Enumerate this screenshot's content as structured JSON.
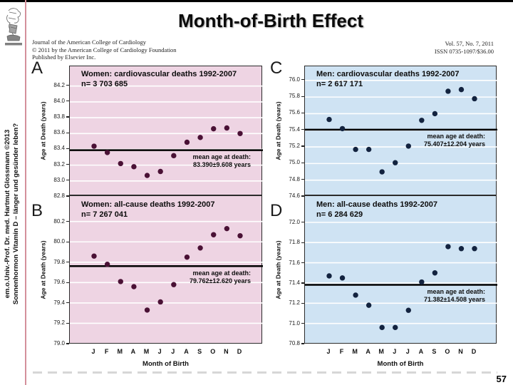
{
  "slide": {
    "title": "Month-of-Birth Effect",
    "page_number": "57",
    "sidebar_line1": "em.o.Univ.-Prof. Dr. med. Hartmut Glossmann ©2013",
    "sidebar_line2": "Sonnenhormon Vitamin D – länger und gesünder leben?"
  },
  "journal_header": {
    "line1": "Journal of the American College of Cardiology",
    "line2": "© 2011 by the American College of Cardiology Foundation",
    "line3": "Published by Elsevier Inc.",
    "vol": "Vol. 57, No. 7, 2011",
    "issn": "ISSN 0735-1097/$36.00"
  },
  "axes": {
    "xlabel": "Month of Birth",
    "ylabel": "Age at Death (years)"
  },
  "chart_data": [
    {
      "id": "A",
      "type": "scatter",
      "letter": "A",
      "title": "Women: cardiovascular deaths 1992-2007",
      "n_label": "n= 3 703 685",
      "mean_label_line1": "mean age at death:",
      "mean_label_line2": "83.390±9.608 years",
      "mean": 83.39,
      "ylim": [
        82.8,
        84.45
      ],
      "yticks": [
        82.8,
        83.0,
        83.2,
        83.4,
        83.6,
        83.8,
        84.0,
        84.2
      ],
      "xlabel": "Month of Birth",
      "ylabel": "Age at Death (years)",
      "x": [
        "J",
        "F",
        "M",
        "A",
        "M",
        "J",
        "J",
        "A",
        "S",
        "O",
        "N",
        "D"
      ],
      "values": [
        83.44,
        83.36,
        83.22,
        83.18,
        83.07,
        83.12,
        83.32,
        83.49,
        83.55,
        83.66,
        83.67,
        83.6
      ],
      "bg": "#eed4e3",
      "point_color": "#4a1135"
    },
    {
      "id": "B",
      "type": "scatter",
      "letter": "B",
      "title": "Women: all-cause deaths 1992-2007",
      "n_label": "n= 7 267 041",
      "mean_label_line1": "mean age at death:",
      "mean_label_line2": "79.762±12.620 years",
      "mean": 79.762,
      "ylim": [
        79.0,
        80.45
      ],
      "yticks": [
        79.0,
        79.2,
        79.4,
        79.6,
        79.8,
        80.0,
        80.2
      ],
      "xlabel": "Month of Birth",
      "ylabel": "Age at Death (years)",
      "x": [
        "J",
        "F",
        "M",
        "A",
        "M",
        "J",
        "J",
        "A",
        "S",
        "O",
        "N",
        "D"
      ],
      "values": [
        79.86,
        79.78,
        79.61,
        79.56,
        79.33,
        79.41,
        79.58,
        79.85,
        79.94,
        80.07,
        80.13,
        80.06
      ],
      "bg": "#eed4e3",
      "point_color": "#4a1135"
    },
    {
      "id": "C",
      "type": "scatter",
      "letter": "C",
      "title": "Men: cardiovascular deaths 1992-2007",
      "n_label": "n= 2 617 171",
      "mean_label_line1": "mean age at death:",
      "mean_label_line2": "75.407±12.204 years",
      "mean": 75.407,
      "ylim": [
        74.6,
        76.17
      ],
      "yticks": [
        74.6,
        74.8,
        75.0,
        75.2,
        75.4,
        75.6,
        75.8,
        76.0
      ],
      "xlabel": "Month of Birth",
      "ylabel": "Age at Death (years)",
      "x": [
        "J",
        "F",
        "M",
        "A",
        "M",
        "J",
        "J",
        "A",
        "S",
        "O",
        "N",
        "D"
      ],
      "values": [
        75.53,
        75.42,
        75.17,
        75.17,
        74.9,
        75.01,
        75.21,
        75.52,
        75.6,
        75.87,
        75.89,
        75.78
      ],
      "bg": "#cfe3f3",
      "point_color": "#13233f"
    },
    {
      "id": "D",
      "type": "scatter",
      "letter": "D",
      "title": "Men: all-cause deaths 1992-2007",
      "n_label": "n= 6 284 629",
      "mean_label_line1": "mean age at death:",
      "mean_label_line2": "71.382±14.508 years",
      "mean": 71.382,
      "ylim": [
        70.8,
        72.26
      ],
      "yticks": [
        70.8,
        71.0,
        71.2,
        71.4,
        71.6,
        71.8,
        72.0
      ],
      "xlabel": "Month of Birth",
      "ylabel": "Age at Death (years)",
      "x": [
        "J",
        "F",
        "M",
        "A",
        "M",
        "J",
        "J",
        "A",
        "S",
        "O",
        "N",
        "D"
      ],
      "values": [
        71.47,
        71.45,
        71.28,
        71.18,
        70.96,
        70.96,
        71.13,
        71.41,
        71.5,
        71.76,
        71.74,
        71.74
      ],
      "bg": "#cfe3f3",
      "point_color": "#13233f"
    }
  ]
}
